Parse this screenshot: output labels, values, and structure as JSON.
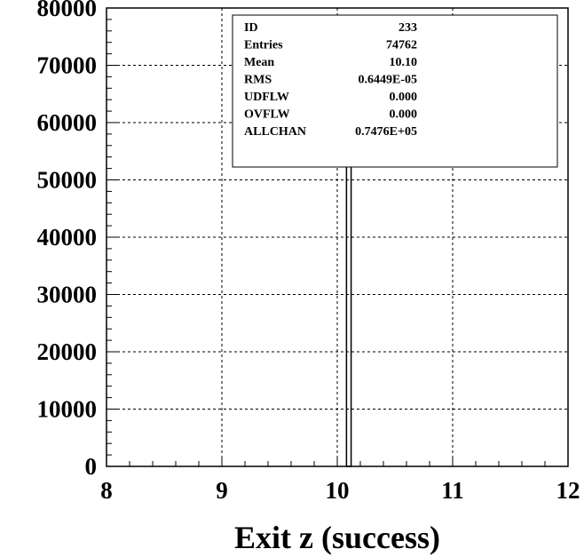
{
  "chart_data": {
    "type": "bar",
    "title": "",
    "xlabel": "Exit z (success)",
    "ylabel": "",
    "xlim": [
      8,
      12
    ],
    "ylim": [
      0,
      80000
    ],
    "grid": true,
    "x_ticks": [
      "8",
      "9",
      "10",
      "11",
      "12"
    ],
    "y_ticks": [
      "0",
      "10000",
      "20000",
      "30000",
      "40000",
      "50000",
      "60000",
      "70000",
      "80000"
    ],
    "bins": [
      {
        "x_low": 10.08,
        "x_high": 10.12,
        "value": 74762
      }
    ],
    "stats_box": {
      "position": "top-right",
      "rows": [
        {
          "label": "ID",
          "value": "233"
        },
        {
          "label": "Entries",
          "value": "74762"
        },
        {
          "label": "Mean",
          "value": "10.10"
        },
        {
          "label": "RMS",
          "value": "0.6449E-05"
        },
        {
          "label": "UDFLW",
          "value": "0.000"
        },
        {
          "label": "OVFLW",
          "value": "0.000"
        },
        {
          "label": "ALLCHAN",
          "value": "0.7476E+05"
        }
      ]
    }
  }
}
